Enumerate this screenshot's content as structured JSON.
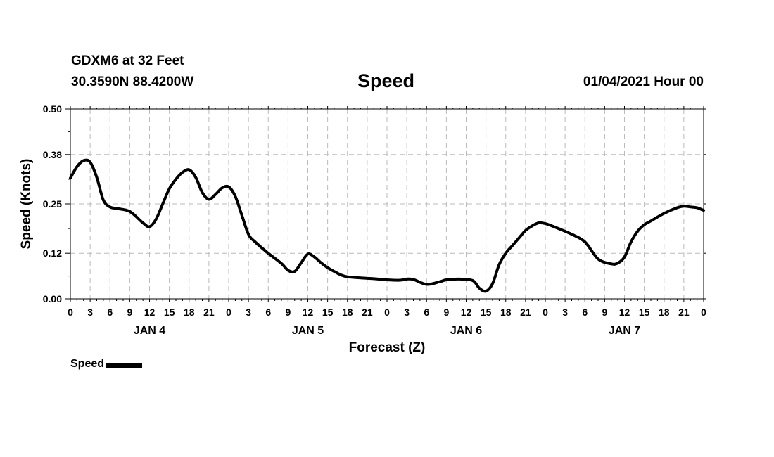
{
  "header": {
    "station": "GDXM6 at 32 Feet",
    "coords": "30.3590N 88.4200W",
    "title": "Speed",
    "datetime": "01/04/2021 Hour 00"
  },
  "chart_data": {
    "type": "line",
    "title": "Speed",
    "xlabel": "Forecast (Z)",
    "ylabel": "Speed (Knots)",
    "xlim": [
      0,
      96
    ],
    "ylim": [
      0,
      0.5
    ],
    "yticks": [
      0.0,
      0.12,
      0.25,
      0.38,
      0.5
    ],
    "ytick_labels": [
      "0.00",
      "0.12",
      "0.25",
      "0.38",
      "0.50"
    ],
    "xtick_hours": [
      0,
      3,
      6,
      9,
      12,
      15,
      18,
      21,
      24,
      27,
      30,
      33,
      36,
      39,
      42,
      45,
      48,
      51,
      54,
      57,
      60,
      63,
      66,
      69,
      72,
      75,
      78,
      81,
      84,
      87,
      90,
      93,
      96
    ],
    "xtick_labels": [
      "0",
      "3",
      "6",
      "9",
      "12",
      "15",
      "18",
      "21",
      "0",
      "3",
      "6",
      "9",
      "12",
      "15",
      "18",
      "21",
      "0",
      "3",
      "6",
      "9",
      "12",
      "15",
      "18",
      "21",
      "0",
      "3",
      "6",
      "9",
      "12",
      "15",
      "18",
      "21",
      "0"
    ],
    "day_labels": [
      {
        "label": "JAN 4",
        "hour": 12
      },
      {
        "label": "JAN 5",
        "hour": 36
      },
      {
        "label": "JAN 6",
        "hour": 60
      },
      {
        "label": "JAN 7",
        "hour": 84
      }
    ],
    "grid": true,
    "legend_position": "bottom-left",
    "series": [
      {
        "name": "Speed",
        "color": "#000000",
        "x": [
          0,
          1,
          2,
          3,
          4,
          5,
          6,
          7,
          9,
          11,
          12,
          13,
          14,
          15,
          16,
          17,
          18,
          19,
          20,
          21,
          22,
          23,
          24,
          25,
          26,
          27,
          28,
          30,
          32,
          33,
          34,
          35,
          36,
          37,
          38,
          39,
          40,
          41,
          42,
          44,
          46,
          48,
          50,
          51,
          52,
          54,
          56,
          57,
          59,
          61,
          62,
          63,
          64,
          65,
          66,
          67,
          68,
          69,
          70,
          71,
          72,
          73,
          74,
          76,
          78,
          80,
          82,
          83,
          84,
          85,
          86,
          87,
          88,
          90,
          92,
          93,
          94,
          95,
          96
        ],
        "values": [
          0.318,
          0.348,
          0.364,
          0.36,
          0.32,
          0.26,
          0.242,
          0.238,
          0.23,
          0.2,
          0.19,
          0.21,
          0.25,
          0.29,
          0.315,
          0.333,
          0.34,
          0.32,
          0.28,
          0.262,
          0.275,
          0.292,
          0.295,
          0.27,
          0.22,
          0.17,
          0.15,
          0.12,
          0.093,
          0.075,
          0.072,
          0.095,
          0.118,
          0.11,
          0.095,
          0.082,
          0.072,
          0.063,
          0.058,
          0.055,
          0.053,
          0.05,
          0.049,
          0.052,
          0.051,
          0.038,
          0.045,
          0.05,
          0.052,
          0.048,
          0.028,
          0.02,
          0.04,
          0.09,
          0.12,
          0.14,
          0.16,
          0.18,
          0.192,
          0.2,
          0.198,
          0.192,
          0.185,
          0.17,
          0.15,
          0.105,
          0.092,
          0.094,
          0.11,
          0.15,
          0.178,
          0.195,
          0.205,
          0.225,
          0.24,
          0.244,
          0.242,
          0.24,
          0.233
        ]
      }
    ]
  },
  "legend": {
    "label": "Speed"
  }
}
